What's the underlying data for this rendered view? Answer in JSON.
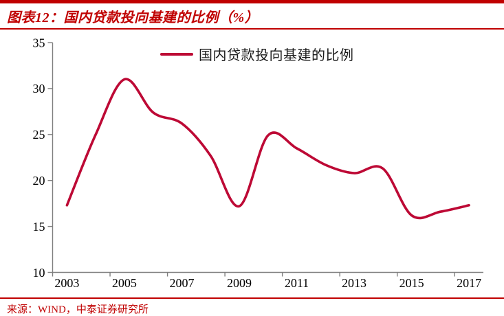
{
  "header": {
    "title": "图表12：国内贷款投向基建的比例（%）"
  },
  "colors": {
    "accent_red": "#C00000",
    "line_red": "#BD0935",
    "axis_gray": "#7F7F7F",
    "label_black": "#000000"
  },
  "chart_data": {
    "type": "line",
    "title": "国内贷款投向基建的比例（%）",
    "legend": [
      "国内贷款投向基建的比例"
    ],
    "legend_position": "top-center-inside",
    "smooth": true,
    "grid": false,
    "x": [
      2003,
      2004,
      2005,
      2006,
      2007,
      2008,
      2009,
      2010,
      2011,
      2012,
      2013,
      2014,
      2015,
      2016,
      2017
    ],
    "series": [
      {
        "name": "国内贷款投向基建的比例",
        "values": [
          17.3,
          25.0,
          31.0,
          27.4,
          26.2,
          22.7,
          17.2,
          24.9,
          23.5,
          21.7,
          20.8,
          21.3,
          16.2,
          16.6,
          17.3
        ]
      }
    ],
    "ylim": [
      10,
      35
    ],
    "yticks": [
      10,
      15,
      20,
      25,
      30,
      35
    ],
    "xtick_labels": [
      "2003",
      "2005",
      "2007",
      "2009",
      "2011",
      "2013",
      "2015",
      "2017"
    ],
    "xlabel": "",
    "ylabel": ""
  },
  "footer": {
    "source": "来源：WIND，中泰证券研究所"
  }
}
